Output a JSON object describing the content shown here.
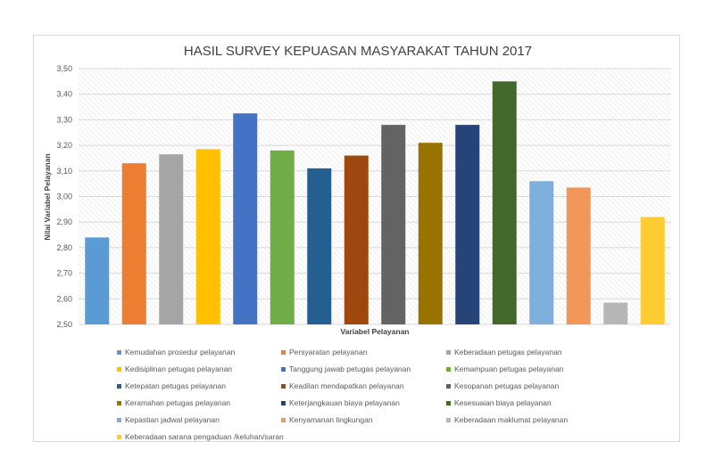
{
  "chart_data": {
    "type": "bar",
    "title": "HASIL SURVEY  KEPUASAN MASYARAKAT TAHUN 2017",
    "xlabel": "Variabel Pelayanan",
    "ylabel": "Nilai Variabel Pelayanan",
    "ylim": [
      2.5,
      3.5
    ],
    "yticks": [
      "2,50",
      "2,60",
      "2,70",
      "2,80",
      "2,90",
      "3,00",
      "3,10",
      "3,20",
      "3,30",
      "3,40",
      "3,50"
    ],
    "grid": "on",
    "legend_position": "bottom",
    "series": [
      {
        "name": "Kemudahan prosedur pelayanan",
        "value": 2.84,
        "color": "#5B9BD5"
      },
      {
        "name": "Persyaratan pelayanan",
        "value": 3.13,
        "color": "#ED7D31"
      },
      {
        "name": "Keberadaan petugas pelayanan",
        "value": 3.165,
        "color": "#A5A5A5"
      },
      {
        "name": "Kedisiplinan petugas pelayanan",
        "value": 3.185,
        "color": "#FFC000"
      },
      {
        "name": "Tanggung jawab petugas pelayanan",
        "value": 3.325,
        "color": "#4472C4"
      },
      {
        "name": "Kemampuan petugas pelayanan",
        "value": 3.18,
        "color": "#70AD47"
      },
      {
        "name": "Ketepatan petugas pelayanan",
        "value": 3.11,
        "color": "#255E91"
      },
      {
        "name": "Keadilan mendapatkan pelayanan",
        "value": 3.16,
        "color": "#9E480E"
      },
      {
        "name": "Kesopanan petugas pelayanan",
        "value": 3.28,
        "color": "#636363"
      },
      {
        "name": "Keramahan petugas pelayanan",
        "value": 3.21,
        "color": "#997300"
      },
      {
        "name": "Keterjangkauan biaya pelayanan",
        "value": 3.28,
        "color": "#264478"
      },
      {
        "name": "Kesesuaian biaya pelayanan",
        "value": 3.45,
        "color": "#43682B"
      },
      {
        "name": "Kepastian jadwal pelayanan",
        "value": 3.06,
        "color": "#7CAFDD"
      },
      {
        "name": "Kenyamanan lingkungan",
        "value": 3.035,
        "color": "#F1975A"
      },
      {
        "name": "Keberadaan maklumat pelayanan",
        "value": 2.585,
        "color": "#B7B7B7"
      },
      {
        "name": "Keberadaan sarana pengaduan /keluhan/saran",
        "value": 2.92,
        "color": "#FFCD33"
      }
    ]
  }
}
